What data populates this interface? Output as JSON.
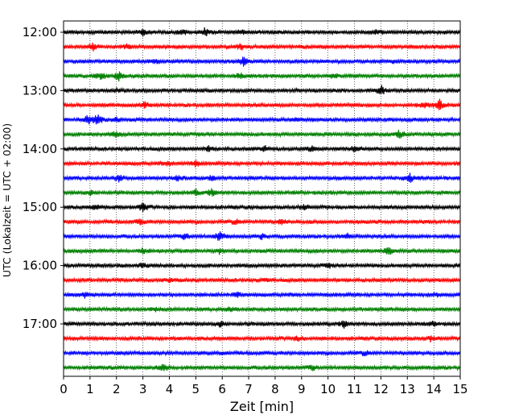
{
  "chart_data": {
    "type": "line",
    "subtype": "helicorder",
    "xlabel": "Zeit  [min]",
    "ylabel": "UTC (Lokalzeit = UTC + 02:00)",
    "xlim": [
      0,
      15
    ],
    "x_ticks": [
      0,
      1,
      2,
      3,
      4,
      5,
      6,
      7,
      8,
      9,
      10,
      11,
      12,
      13,
      14,
      15
    ],
    "y_tick_labels": [
      "12:00",
      "13:00",
      "14:00",
      "15:00",
      "16:00",
      "17:00"
    ],
    "rows_per_hour": 4,
    "minutes_per_row": 15,
    "start_time": "12:00",
    "row_count": 24,
    "grid": "vertical dotted at each minute",
    "colors": [
      "#000000",
      "#ff0000",
      "#0000ff",
      "#008000"
    ],
    "rows": [
      {
        "time": "12:00",
        "color": "#000000",
        "events": [
          [
            3.0,
            3
          ],
          [
            4.5,
            3
          ],
          [
            5.35,
            5
          ],
          [
            6.7,
            3
          ],
          [
            11.8,
            3
          ]
        ]
      },
      {
        "time": "12:15",
        "color": "#ff0000",
        "events": [
          [
            1.1,
            4
          ],
          [
            2.4,
            2
          ],
          [
            6.7,
            3
          ]
        ]
      },
      {
        "time": "12:30",
        "color": "#0000ff",
        "events": [
          [
            3.4,
            3
          ],
          [
            6.8,
            5
          ],
          [
            12.5,
            2
          ]
        ]
      },
      {
        "time": "12:45",
        "color": "#008000",
        "events": [
          [
            1.4,
            4
          ],
          [
            2.1,
            6
          ],
          [
            6.7,
            4
          ],
          [
            10.2,
            3
          ]
        ]
      },
      {
        "time": "13:00",
        "color": "#000000",
        "events": [
          [
            2.0,
            2
          ],
          [
            12.0,
            6
          ]
        ]
      },
      {
        "time": "13:15",
        "color": "#ff0000",
        "events": [
          [
            3.1,
            3
          ],
          [
            13.6,
            4
          ],
          [
            14.2,
            8
          ]
        ]
      },
      {
        "time": "13:30",
        "color": "#0000ff",
        "events": [
          [
            0.9,
            6
          ],
          [
            1.3,
            8
          ],
          [
            2.0,
            3
          ],
          [
            8.8,
            2
          ]
        ]
      },
      {
        "time": "13:45",
        "color": "#008000",
        "events": [
          [
            2.0,
            3
          ],
          [
            12.7,
            5
          ]
        ]
      },
      {
        "time": "14:00",
        "color": "#000000",
        "events": [
          [
            5.5,
            3
          ],
          [
            7.6,
            3
          ],
          [
            9.4,
            3
          ],
          [
            11.0,
            3
          ]
        ]
      },
      {
        "time": "14:15",
        "color": "#ff0000",
        "events": [
          [
            4.0,
            2
          ],
          [
            5.0,
            3
          ]
        ]
      },
      {
        "time": "14:30",
        "color": "#0000ff",
        "events": [
          [
            2.1,
            4
          ],
          [
            4.3,
            3
          ],
          [
            5.6,
            3
          ],
          [
            13.1,
            5
          ]
        ]
      },
      {
        "time": "14:45",
        "color": "#008000",
        "events": [
          [
            1.0,
            2
          ],
          [
            5.0,
            3
          ],
          [
            5.6,
            4
          ]
        ]
      },
      {
        "time": "15:00",
        "color": "#000000",
        "events": [
          [
            1.2,
            3
          ],
          [
            3.0,
            5
          ],
          [
            9.1,
            3
          ]
        ]
      },
      {
        "time": "15:15",
        "color": "#ff0000",
        "events": [
          [
            2.9,
            3
          ],
          [
            6.5,
            3
          ],
          [
            8.2,
            3
          ]
        ]
      },
      {
        "time": "15:30",
        "color": "#0000ff",
        "events": [
          [
            4.6,
            4
          ],
          [
            5.9,
            6
          ],
          [
            7.5,
            3
          ],
          [
            10.7,
            3
          ]
        ]
      },
      {
        "time": "15:45",
        "color": "#008000",
        "events": [
          [
            3.0,
            3
          ],
          [
            5.9,
            3
          ],
          [
            12.3,
            5
          ]
        ]
      },
      {
        "time": "16:00",
        "color": "#000000",
        "events": [
          [
            3.0,
            2
          ],
          [
            10.0,
            2
          ]
        ]
      },
      {
        "time": "16:15",
        "color": "#ff0000",
        "events": [
          [
            4.0,
            2
          ],
          [
            7.6,
            2
          ]
        ]
      },
      {
        "time": "16:30",
        "color": "#0000ff",
        "events": [
          [
            0.8,
            3
          ],
          [
            6.6,
            3
          ],
          [
            14.1,
            2
          ]
        ]
      },
      {
        "time": "16:45",
        "color": "#008000",
        "events": [
          [
            3.5,
            2
          ],
          [
            6.3,
            3
          ]
        ]
      },
      {
        "time": "17:00",
        "color": "#000000",
        "events": [
          [
            5.9,
            3
          ],
          [
            10.6,
            4
          ],
          [
            14.0,
            3
          ]
        ]
      },
      {
        "time": "17:15",
        "color": "#ff0000",
        "events": [
          [
            8.8,
            3
          ],
          [
            13.9,
            3
          ]
        ]
      },
      {
        "time": "17:30",
        "color": "#0000ff",
        "events": [
          [
            6.0,
            2
          ],
          [
            11.4,
            3
          ]
        ]
      },
      {
        "time": "17:45",
        "color": "#008000",
        "events": [
          [
            3.8,
            4
          ],
          [
            9.4,
            3
          ]
        ]
      }
    ]
  }
}
